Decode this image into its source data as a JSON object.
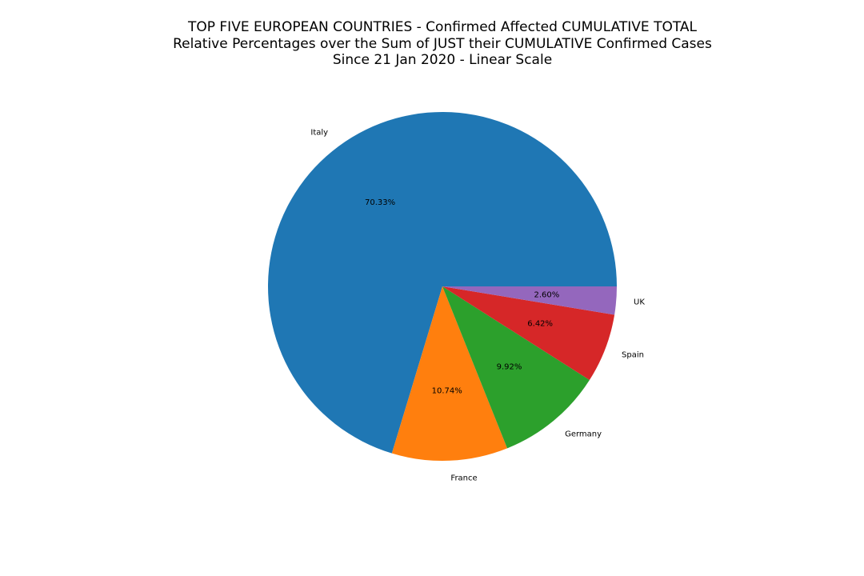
{
  "chart_data": {
    "type": "pie",
    "title_lines": [
      "TOP FIVE EUROPEAN COUNTRIES - Confirmed Affected CUMULATIVE TOTAL",
      "Relative Percentages over the Sum of JUST their CUMULATIVE Confirmed Cases",
      "Since 21 Jan 2020 - Linear Scale"
    ],
    "slices": [
      {
        "label": "Italy",
        "value": 70.33,
        "pct_text": "70.33%",
        "color": "#1f77b4"
      },
      {
        "label": "France",
        "value": 10.74,
        "pct_text": "10.74%",
        "color": "#ff7f0e"
      },
      {
        "label": "Germany",
        "value": 9.92,
        "pct_text": "9.92%",
        "color": "#2ca02c"
      },
      {
        "label": "Spain",
        "value": 6.42,
        "pct_text": "6.42%",
        "color": "#d62728"
      },
      {
        "label": "UK",
        "value": 2.6,
        "pct_text": "2.60%",
        "color": "#9467bd"
      }
    ],
    "start_angle_deg": 0,
    "direction": "counterclockwise",
    "legend": "none"
  }
}
